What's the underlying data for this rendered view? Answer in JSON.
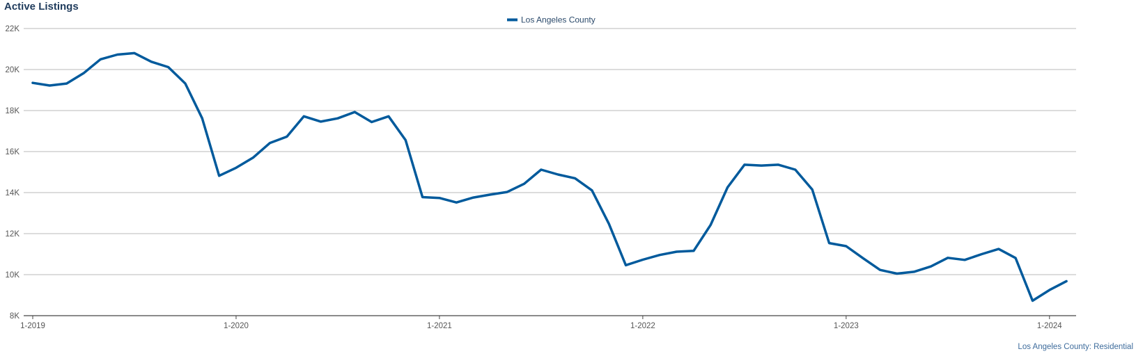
{
  "chart_data": {
    "type": "line",
    "title": "Active Listings",
    "source": "Los Angeles County: Residential",
    "xlabel": "",
    "ylabel": "",
    "x_ticks": [
      "1-2019",
      "1-2020",
      "1-2021",
      "1-2022",
      "1-2023",
      "1-2024"
    ],
    "y_ticks": [
      "8K",
      "10K",
      "12K",
      "14K",
      "16K",
      "18K",
      "20K",
      "22K"
    ],
    "ylim": [
      8000,
      22000
    ],
    "xlim": [
      "2019-01",
      "2024-02"
    ],
    "grid": "horizontal",
    "legend_position": "top-center",
    "color": "#005a9c",
    "x": [
      "2019-01",
      "2019-02",
      "2019-03",
      "2019-04",
      "2019-05",
      "2019-06",
      "2019-07",
      "2019-08",
      "2019-09",
      "2019-10",
      "2019-11",
      "2019-12",
      "2020-01",
      "2020-02",
      "2020-03",
      "2020-04",
      "2020-05",
      "2020-06",
      "2020-07",
      "2020-08",
      "2020-09",
      "2020-10",
      "2020-11",
      "2020-12",
      "2021-01",
      "2021-02",
      "2021-03",
      "2021-04",
      "2021-05",
      "2021-06",
      "2021-07",
      "2021-08",
      "2021-09",
      "2021-10",
      "2021-11",
      "2021-12",
      "2022-01",
      "2022-02",
      "2022-03",
      "2022-04",
      "2022-05",
      "2022-06",
      "2022-07",
      "2022-08",
      "2022-09",
      "2022-10",
      "2022-11",
      "2022-12",
      "2023-01",
      "2023-02",
      "2023-03",
      "2023-04",
      "2023-05",
      "2023-06",
      "2023-07",
      "2023-08",
      "2023-09",
      "2023-10",
      "2023-11",
      "2023-12",
      "2024-01",
      "2024-02"
    ],
    "series": [
      {
        "name": "Los Angeles County",
        "values": [
          19350,
          19220,
          19320,
          19820,
          20500,
          20730,
          20800,
          20380,
          20120,
          19320,
          17620,
          14820,
          15210,
          15700,
          16420,
          16730,
          17720,
          17460,
          17620,
          17930,
          17440,
          17720,
          16560,
          13780,
          13740,
          13520,
          13760,
          13900,
          14030,
          14430,
          15120,
          14880,
          14700,
          14110,
          12480,
          10460,
          10730,
          10960,
          11120,
          11160,
          12420,
          14250,
          15360,
          15320,
          15360,
          15120,
          14150,
          11540,
          11390,
          10800,
          10230,
          10050,
          10140,
          10400,
          10820,
          10720,
          11000,
          11250,
          10810,
          8730,
          9250,
          9680
        ]
      }
    ]
  }
}
